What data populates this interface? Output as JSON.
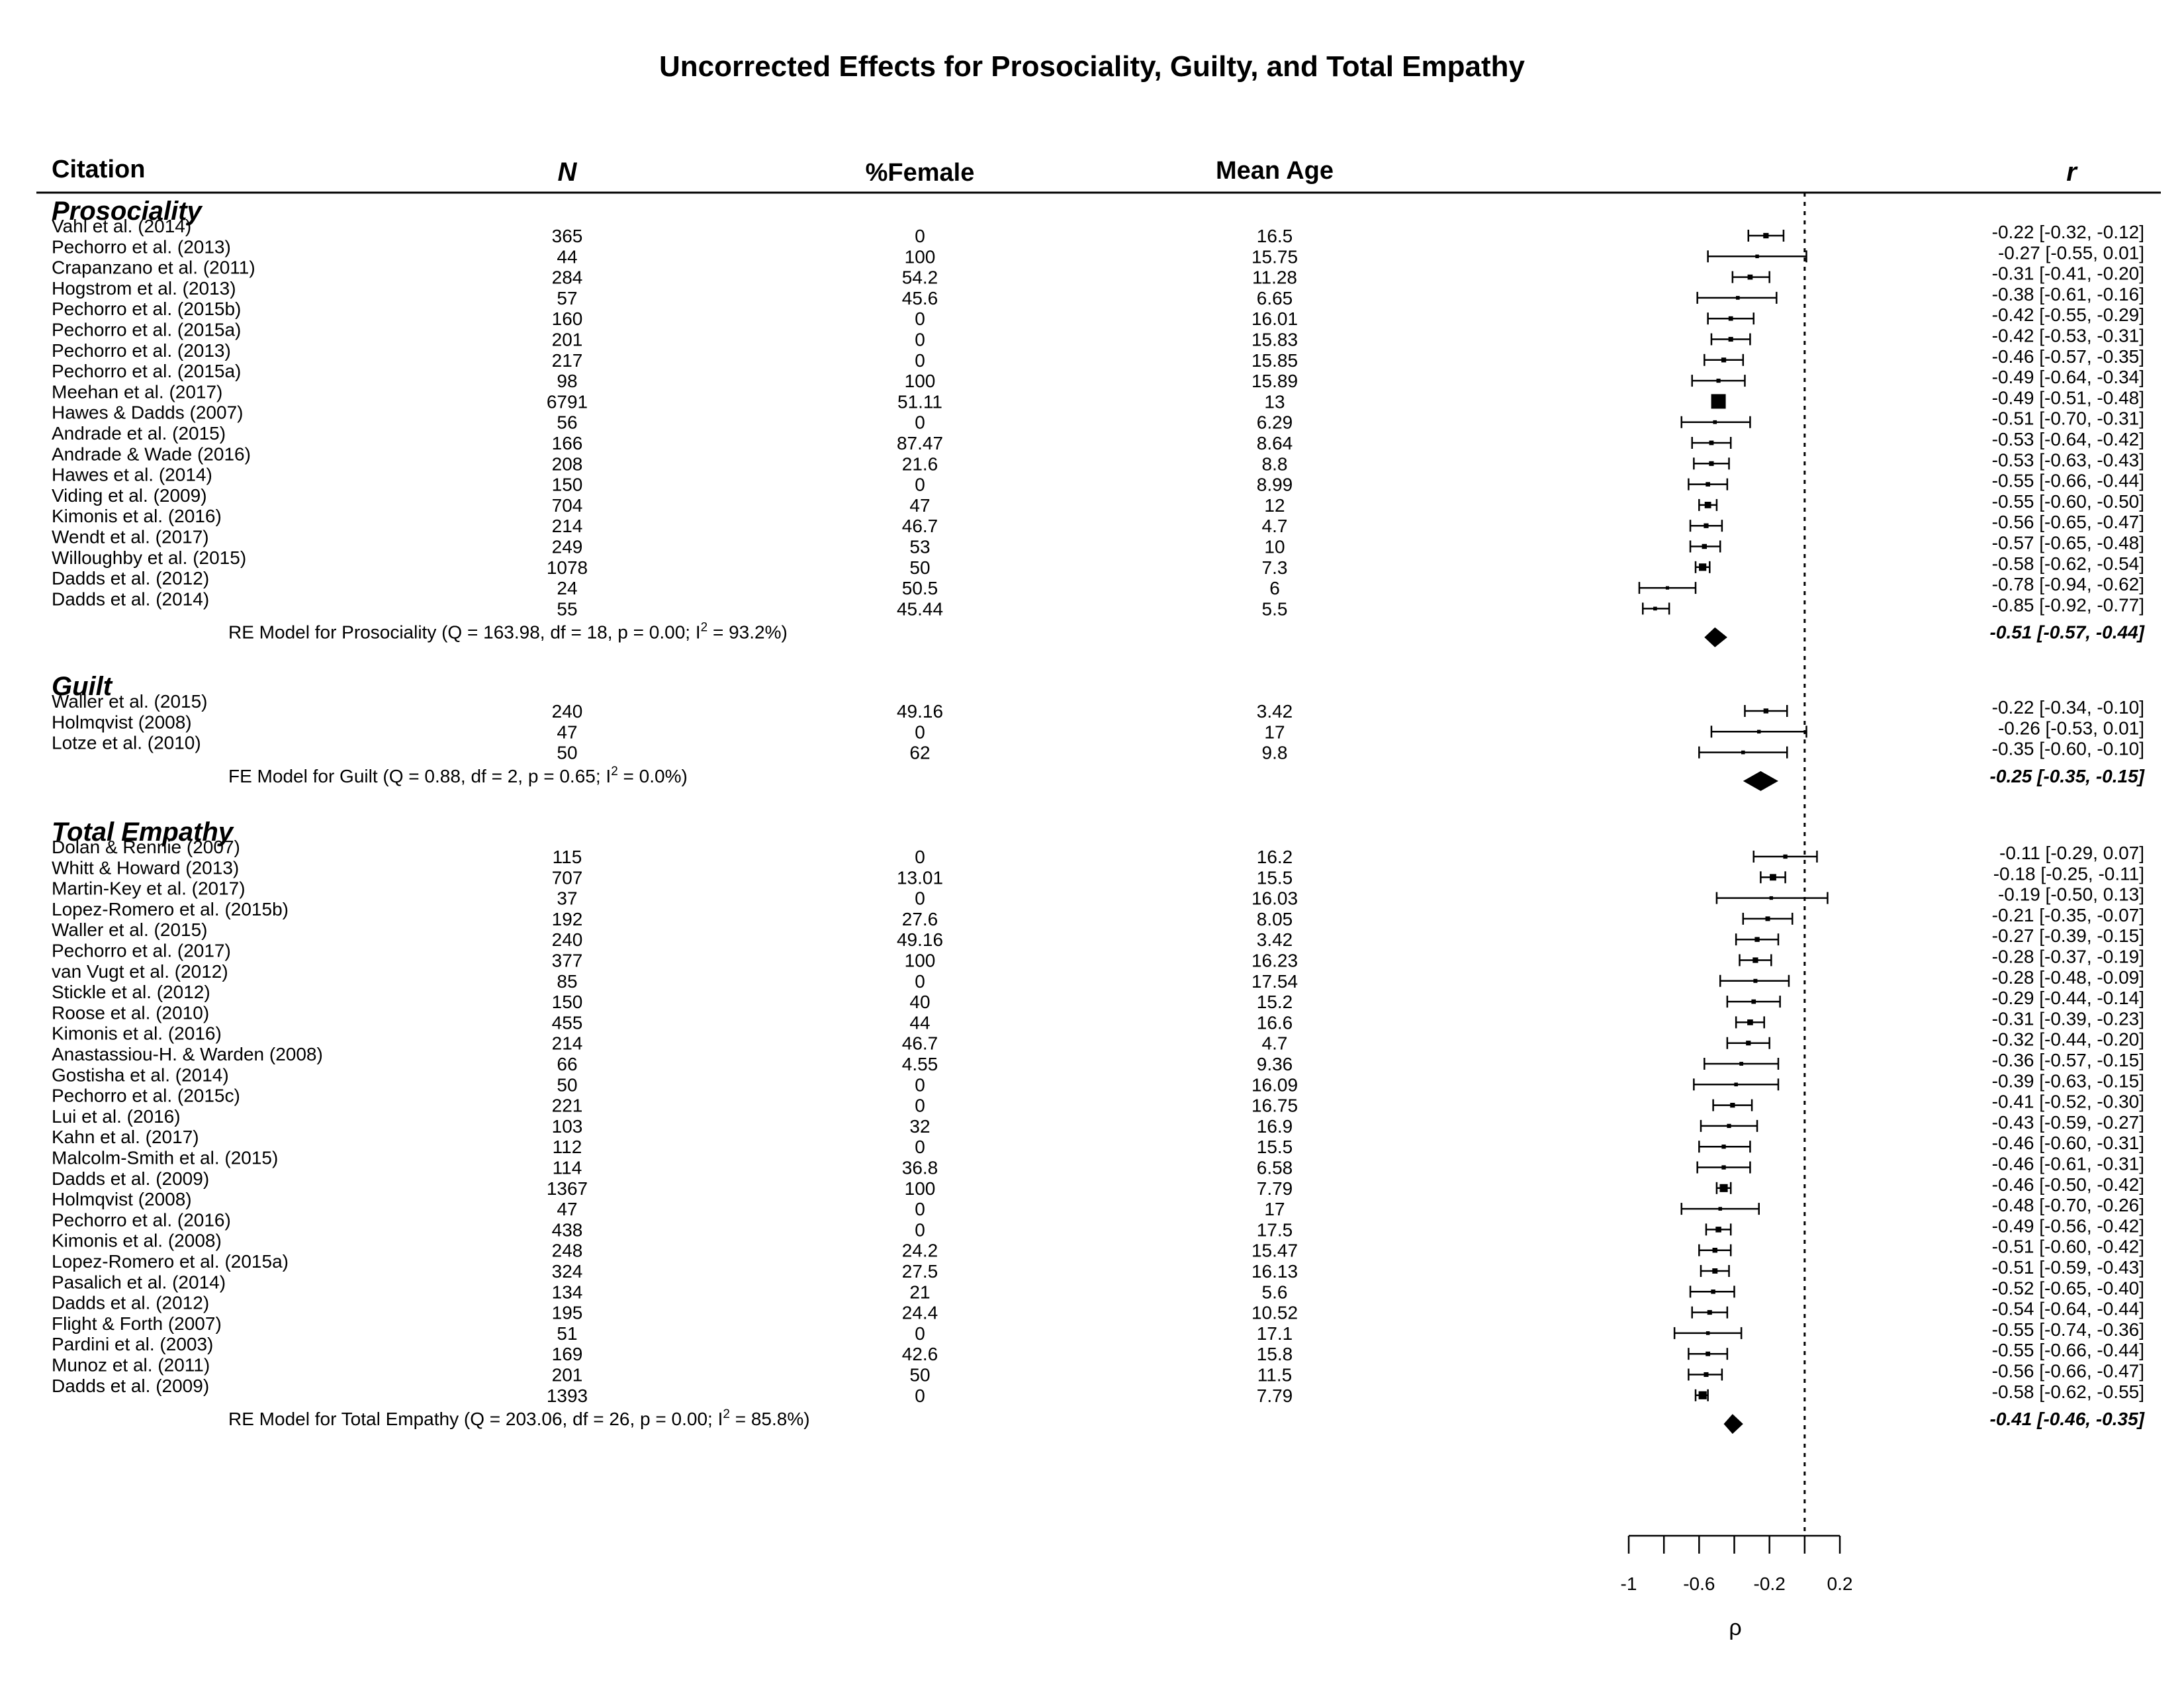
{
  "chart_data": {
    "type": "forest",
    "title": "Uncorrected Effects for Prosociality, Guilty, and Total Empathy",
    "headers": {
      "citation": "Citation",
      "n": "N",
      "female": "%Female",
      "age": "Mean Age",
      "r": "r"
    },
    "xlabel": "ρ",
    "xlim": [
      -1,
      0.2
    ],
    "x_ticks": [
      -1,
      -0.8,
      -0.6,
      -0.4,
      -0.2,
      0,
      0.2
    ],
    "x_tick_labels": [
      "-1",
      "",
      "-0.6",
      "",
      "-0.2",
      "",
      "0.2"
    ],
    "reference_line": 0.0,
    "sections": [
      {
        "name": "Prosociality",
        "studies": [
          {
            "citation": "Vahl et al. (2014)",
            "n": "365",
            "female": "0",
            "age": "16.5",
            "r": -0.22,
            "lo": -0.32,
            "hi": -0.12,
            "ci": "-0.22 [-0.32, -0.12]"
          },
          {
            "citation": "Pechorro et al. (2013)",
            "n": "44",
            "female": "100",
            "age": "15.75",
            "r": -0.27,
            "lo": -0.55,
            "hi": 0.01,
            "ci": "-0.27 [-0.55,  0.01]"
          },
          {
            "citation": "Crapanzano et al. (2011)",
            "n": "284",
            "female": "54.2",
            "age": "11.28",
            "r": -0.31,
            "lo": -0.41,
            "hi": -0.2,
            "ci": "-0.31 [-0.41, -0.20]"
          },
          {
            "citation": "Hogstrom et al. (2013)",
            "n": "57",
            "female": "45.6",
            "age": "6.65",
            "r": -0.38,
            "lo": -0.61,
            "hi": -0.16,
            "ci": "-0.38 [-0.61, -0.16]"
          },
          {
            "citation": "Pechorro et al. (2015b)",
            "n": "160",
            "female": "0",
            "age": "16.01",
            "r": -0.42,
            "lo": -0.55,
            "hi": -0.29,
            "ci": "-0.42 [-0.55, -0.29]"
          },
          {
            "citation": "Pechorro et al. (2015a)",
            "n": "201",
            "female": "0",
            "age": "15.83",
            "r": -0.42,
            "lo": -0.53,
            "hi": -0.31,
            "ci": "-0.42 [-0.53, -0.31]"
          },
          {
            "citation": "Pechorro et al. (2013)",
            "n": "217",
            "female": "0",
            "age": "15.85",
            "r": -0.46,
            "lo": -0.57,
            "hi": -0.35,
            "ci": "-0.46 [-0.57, -0.35]"
          },
          {
            "citation": "Pechorro et al. (2015a)",
            "n": "98",
            "female": "100",
            "age": "15.89",
            "r": -0.49,
            "lo": -0.64,
            "hi": -0.34,
            "ci": "-0.49 [-0.64, -0.34]"
          },
          {
            "citation": "Meehan et al. (2017)",
            "n": "6791",
            "female": "51.11",
            "age": "13",
            "r": -0.49,
            "lo": -0.51,
            "hi": -0.48,
            "ci": "-0.49 [-0.51, -0.48]"
          },
          {
            "citation": "Hawes & Dadds (2007)",
            "n": "56",
            "female": "0",
            "age": "6.29",
            "r": -0.51,
            "lo": -0.7,
            "hi": -0.31,
            "ci": "-0.51 [-0.70, -0.31]"
          },
          {
            "citation": "Andrade et al. (2015)",
            "n": "166",
            "female": "87.47",
            "age": "8.64",
            "r": -0.53,
            "lo": -0.64,
            "hi": -0.42,
            "ci": "-0.53 [-0.64, -0.42]"
          },
          {
            "citation": "Andrade & Wade (2016)",
            "n": "208",
            "female": "21.6",
            "age": "8.8",
            "r": -0.53,
            "lo": -0.63,
            "hi": -0.43,
            "ci": "-0.53 [-0.63, -0.43]"
          },
          {
            "citation": "Hawes et al. (2014)",
            "n": "150",
            "female": "0",
            "age": "8.99",
            "r": -0.55,
            "lo": -0.66,
            "hi": -0.44,
            "ci": "-0.55 [-0.66, -0.44]"
          },
          {
            "citation": "Viding et al. (2009)",
            "n": "704",
            "female": "47",
            "age": "12",
            "r": -0.55,
            "lo": -0.6,
            "hi": -0.5,
            "ci": "-0.55 [-0.60, -0.50]"
          },
          {
            "citation": "Kimonis et al. (2016)",
            "n": "214",
            "female": "46.7",
            "age": "4.7",
            "r": -0.56,
            "lo": -0.65,
            "hi": -0.47,
            "ci": "-0.56 [-0.65, -0.47]"
          },
          {
            "citation": "Wendt et al. (2017)",
            "n": "249",
            "female": "53",
            "age": "10",
            "r": -0.57,
            "lo": -0.65,
            "hi": -0.48,
            "ci": "-0.57 [-0.65, -0.48]"
          },
          {
            "citation": "Willoughby et al. (2015)",
            "n": "1078",
            "female": "50",
            "age": "7.3",
            "r": -0.58,
            "lo": -0.62,
            "hi": -0.54,
            "ci": "-0.58 [-0.62, -0.54]"
          },
          {
            "citation": "Dadds et al. (2012)",
            "n": "24",
            "female": "50.5",
            "age": "6",
            "r": -0.78,
            "lo": -0.94,
            "hi": -0.62,
            "ci": "-0.78 [-0.94, -0.62]"
          },
          {
            "citation": "Dadds et al. (2014)",
            "n": "55",
            "female": "45.44",
            "age": "5.5",
            "r": -0.85,
            "lo": -0.92,
            "hi": -0.77,
            "ci": "-0.85 [-0.92, -0.77]"
          }
        ],
        "summary": {
          "label": "RE Model for Prosociality (Q = 163.98, df = 18, p = 0.00; I",
          "sup": "2",
          "label_end": " = 93.2%)",
          "r": -0.51,
          "lo": -0.57,
          "hi": -0.44,
          "ci": "-0.51 [-0.57, -0.44]"
        }
      },
      {
        "name": "Guilt",
        "studies": [
          {
            "citation": "Waller et al. (2015)",
            "n": "240",
            "female": "49.16",
            "age": "3.42",
            "r": -0.22,
            "lo": -0.34,
            "hi": -0.1,
            "ci": "-0.22 [-0.34, -0.10]"
          },
          {
            "citation": "Holmqvist (2008)",
            "n": "47",
            "female": "0",
            "age": "17",
            "r": -0.26,
            "lo": -0.53,
            "hi": 0.01,
            "ci": "-0.26 [-0.53,  0.01]"
          },
          {
            "citation": "Lotze et al. (2010)",
            "n": "50",
            "female": "62",
            "age": "9.8",
            "r": -0.35,
            "lo": -0.6,
            "hi": -0.1,
            "ci": "-0.35 [-0.60, -0.10]"
          }
        ],
        "summary": {
          "label": "FE Model for Guilt (Q = 0.88, df = 2, p = 0.65; I",
          "sup": "2",
          "label_end": " = 0.0%)",
          "r": -0.25,
          "lo": -0.35,
          "hi": -0.15,
          "ci": "-0.25 [-0.35, -0.15]"
        }
      },
      {
        "name": "Total Empathy",
        "studies": [
          {
            "citation": "Dolan & Rennie (2007)",
            "n": "115",
            "female": "0",
            "age": "16.2",
            "r": -0.11,
            "lo": -0.29,
            "hi": 0.07,
            "ci": "-0.11 [-0.29,  0.07]"
          },
          {
            "citation": "Whitt & Howard (2013)",
            "n": "707",
            "female": "13.01",
            "age": "15.5",
            "r": -0.18,
            "lo": -0.25,
            "hi": -0.11,
            "ci": "-0.18 [-0.25, -0.11]"
          },
          {
            "citation": "Martin-Key et al. (2017)",
            "n": "37",
            "female": "0",
            "age": "16.03",
            "r": -0.19,
            "lo": -0.5,
            "hi": 0.13,
            "ci": "-0.19 [-0.50,  0.13]"
          },
          {
            "citation": "Lopez-Romero et al. (2015b)",
            "n": "192",
            "female": "27.6",
            "age": "8.05",
            "r": -0.21,
            "lo": -0.35,
            "hi": -0.07,
            "ci": "-0.21 [-0.35, -0.07]"
          },
          {
            "citation": "Waller et al. (2015)",
            "n": "240",
            "female": "49.16",
            "age": "3.42",
            "r": -0.27,
            "lo": -0.39,
            "hi": -0.15,
            "ci": "-0.27 [-0.39, -0.15]"
          },
          {
            "citation": "Pechorro et al. (2017)",
            "n": "377",
            "female": "100",
            "age": "16.23",
            "r": -0.28,
            "lo": -0.37,
            "hi": -0.19,
            "ci": "-0.28 [-0.37, -0.19]"
          },
          {
            "citation": "van Vugt et al. (2012)",
            "n": "85",
            "female": "0",
            "age": "17.54",
            "r": -0.28,
            "lo": -0.48,
            "hi": -0.09,
            "ci": "-0.28 [-0.48, -0.09]"
          },
          {
            "citation": "Stickle et al. (2012)",
            "n": "150",
            "female": "40",
            "age": "15.2",
            "r": -0.29,
            "lo": -0.44,
            "hi": -0.14,
            "ci": "-0.29 [-0.44, -0.14]"
          },
          {
            "citation": "Roose et al. (2010)",
            "n": "455",
            "female": "44",
            "age": "16.6",
            "r": -0.31,
            "lo": -0.39,
            "hi": -0.23,
            "ci": "-0.31 [-0.39, -0.23]"
          },
          {
            "citation": "Kimonis et al. (2016)",
            "n": "214",
            "female": "46.7",
            "age": "4.7",
            "r": -0.32,
            "lo": -0.44,
            "hi": -0.2,
            "ci": "-0.32 [-0.44, -0.20]"
          },
          {
            "citation": "Anastassiou-H. & Warden (2008)",
            "n": "66",
            "female": "4.55",
            "age": "9.36",
            "r": -0.36,
            "lo": -0.57,
            "hi": -0.15,
            "ci": "-0.36 [-0.57, -0.15]"
          },
          {
            "citation": "Gostisha et al. (2014)",
            "n": "50",
            "female": "0",
            "age": "16.09",
            "r": -0.39,
            "lo": -0.63,
            "hi": -0.15,
            "ci": "-0.39 [-0.63, -0.15]"
          },
          {
            "citation": "Pechorro et al. (2015c)",
            "n": "221",
            "female": "0",
            "age": "16.75",
            "r": -0.41,
            "lo": -0.52,
            "hi": -0.3,
            "ci": "-0.41 [-0.52, -0.30]"
          },
          {
            "citation": "Lui et al. (2016)",
            "n": "103",
            "female": "32",
            "age": "16.9",
            "r": -0.43,
            "lo": -0.59,
            "hi": -0.27,
            "ci": "-0.43 [-0.59, -0.27]"
          },
          {
            "citation": "Kahn et al. (2017)",
            "n": "112",
            "female": "0",
            "age": "15.5",
            "r": -0.46,
            "lo": -0.6,
            "hi": -0.31,
            "ci": "-0.46 [-0.60, -0.31]"
          },
          {
            "citation": "Malcolm-Smith et al. (2015)",
            "n": "114",
            "female": "36.8",
            "age": "6.58",
            "r": -0.46,
            "lo": -0.61,
            "hi": -0.31,
            "ci": "-0.46 [-0.61, -0.31]"
          },
          {
            "citation": "Dadds et al. (2009)",
            "n": "1367",
            "female": "100",
            "age": "7.79",
            "r": -0.46,
            "lo": -0.5,
            "hi": -0.42,
            "ci": "-0.46 [-0.50, -0.42]"
          },
          {
            "citation": "Holmqvist (2008)",
            "n": "47",
            "female": "0",
            "age": "17",
            "r": -0.48,
            "lo": -0.7,
            "hi": -0.26,
            "ci": "-0.48 [-0.70, -0.26]"
          },
          {
            "citation": "Pechorro et al. (2016)",
            "n": "438",
            "female": "0",
            "age": "17.5",
            "r": -0.49,
            "lo": -0.56,
            "hi": -0.42,
            "ci": "-0.49 [-0.56, -0.42]"
          },
          {
            "citation": "Kimonis et al. (2008)",
            "n": "248",
            "female": "24.2",
            "age": "15.47",
            "r": -0.51,
            "lo": -0.6,
            "hi": -0.42,
            "ci": "-0.51 [-0.60, -0.42]"
          },
          {
            "citation": "Lopez-Romero et al. (2015a)",
            "n": "324",
            "female": "27.5",
            "age": "16.13",
            "r": -0.51,
            "lo": -0.59,
            "hi": -0.43,
            "ci": "-0.51 [-0.59, -0.43]"
          },
          {
            "citation": "Pasalich et al. (2014)",
            "n": "134",
            "female": "21",
            "age": "5.6",
            "r": -0.52,
            "lo": -0.65,
            "hi": -0.4,
            "ci": "-0.52 [-0.65, -0.40]"
          },
          {
            "citation": "Dadds et al. (2012)",
            "n": "195",
            "female": "24.4",
            "age": "10.52",
            "r": -0.54,
            "lo": -0.64,
            "hi": -0.44,
            "ci": "-0.54 [-0.64, -0.44]"
          },
          {
            "citation": "Flight & Forth (2007)",
            "n": "51",
            "female": "0",
            "age": "17.1",
            "r": -0.55,
            "lo": -0.74,
            "hi": -0.36,
            "ci": "-0.55 [-0.74, -0.36]"
          },
          {
            "citation": "Pardini et al. (2003)",
            "n": "169",
            "female": "42.6",
            "age": "15.8",
            "r": -0.55,
            "lo": -0.66,
            "hi": -0.44,
            "ci": "-0.55 [-0.66, -0.44]"
          },
          {
            "citation": "Munoz et al. (2011)",
            "n": "201",
            "female": "50",
            "age": "11.5",
            "r": -0.56,
            "lo": -0.66,
            "hi": -0.47,
            "ci": "-0.56 [-0.66, -0.47]"
          },
          {
            "citation": "Dadds et al. (2009)",
            "n": "1393",
            "female": "0",
            "age": "7.79",
            "r": -0.58,
            "lo": -0.62,
            "hi": -0.55,
            "ci": "-0.58 [-0.62, -0.55]"
          }
        ],
        "summary": {
          "label": "RE Model for Total Empathy (Q = 203.06, df = 26, p = 0.00; I",
          "sup": "2",
          "label_end": " = 85.8%)",
          "r": -0.41,
          "lo": -0.46,
          "hi": -0.35,
          "ci": "-0.41 [-0.46, -0.35]"
        }
      }
    ]
  }
}
